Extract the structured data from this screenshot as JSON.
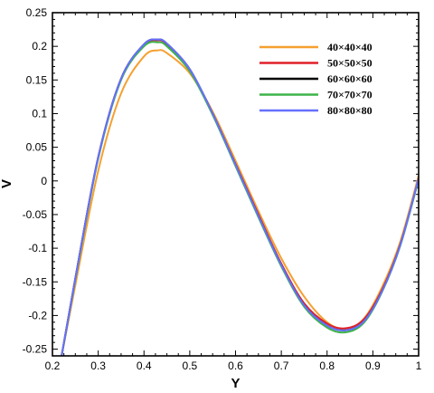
{
  "chart_data": {
    "type": "line",
    "title": "",
    "xlabel": "Y",
    "ylabel": "V",
    "xlim": [
      0.2,
      1.0
    ],
    "ylim": [
      -0.26,
      0.25
    ],
    "x_ticks": [
      "0.2",
      "0.3",
      "0.4",
      "0.5",
      "0.6",
      "0.7",
      "0.8",
      "0.9",
      "1"
    ],
    "y_ticks": [
      "0.25",
      "0.2",
      "0.15",
      "0.1",
      "0.05",
      "0",
      "-0.05",
      "-0.1",
      "-0.15",
      "-0.2",
      "-0.25"
    ],
    "legend_position": "top-right",
    "grid": false,
    "x": [
      0.22,
      0.25,
      0.3,
      0.35,
      0.4,
      0.43,
      0.45,
      0.5,
      0.55,
      0.6,
      0.65,
      0.7,
      0.75,
      0.8,
      0.84,
      0.88,
      0.92,
      0.96,
      1.0
    ],
    "series": [
      {
        "name": "40×40×40",
        "color": "#f5a030",
        "values": [
          -0.26,
          -0.155,
          0.015,
          0.13,
          0.185,
          0.194,
          0.19,
          0.16,
          0.103,
          0.03,
          -0.045,
          -0.115,
          -0.172,
          -0.21,
          -0.22,
          -0.205,
          -0.158,
          -0.09,
          0.008
        ]
      },
      {
        "name": "50×50×50",
        "color": "#e0202a",
        "values": [
          -0.26,
          -0.145,
          0.035,
          0.152,
          0.202,
          0.209,
          0.203,
          0.165,
          0.1,
          0.025,
          -0.05,
          -0.123,
          -0.182,
          -0.212,
          -0.219,
          -0.206,
          -0.162,
          -0.094,
          0.003
        ]
      },
      {
        "name": "60×60×60",
        "color": "#000000",
        "values": [
          -0.26,
          -0.145,
          0.035,
          0.152,
          0.203,
          0.21,
          0.204,
          0.166,
          0.1,
          0.024,
          -0.052,
          -0.125,
          -0.185,
          -0.215,
          -0.222,
          -0.209,
          -0.164,
          -0.095,
          0.003
        ]
      },
      {
        "name": "70×70×70",
        "color": "#3db34a",
        "values": [
          -0.26,
          -0.147,
          0.033,
          0.15,
          0.2,
          0.206,
          0.2,
          0.163,
          0.098,
          0.022,
          -0.054,
          -0.127,
          -0.187,
          -0.218,
          -0.225,
          -0.211,
          -0.165,
          -0.096,
          0.002
        ]
      },
      {
        "name": "80×80×80",
        "color": "#6670ff",
        "values": [
          -0.26,
          -0.145,
          0.035,
          0.152,
          0.203,
          0.21,
          0.204,
          0.166,
          0.1,
          0.024,
          -0.052,
          -0.125,
          -0.185,
          -0.215,
          -0.222,
          -0.209,
          -0.164,
          -0.095,
          0.004
        ]
      }
    ]
  }
}
